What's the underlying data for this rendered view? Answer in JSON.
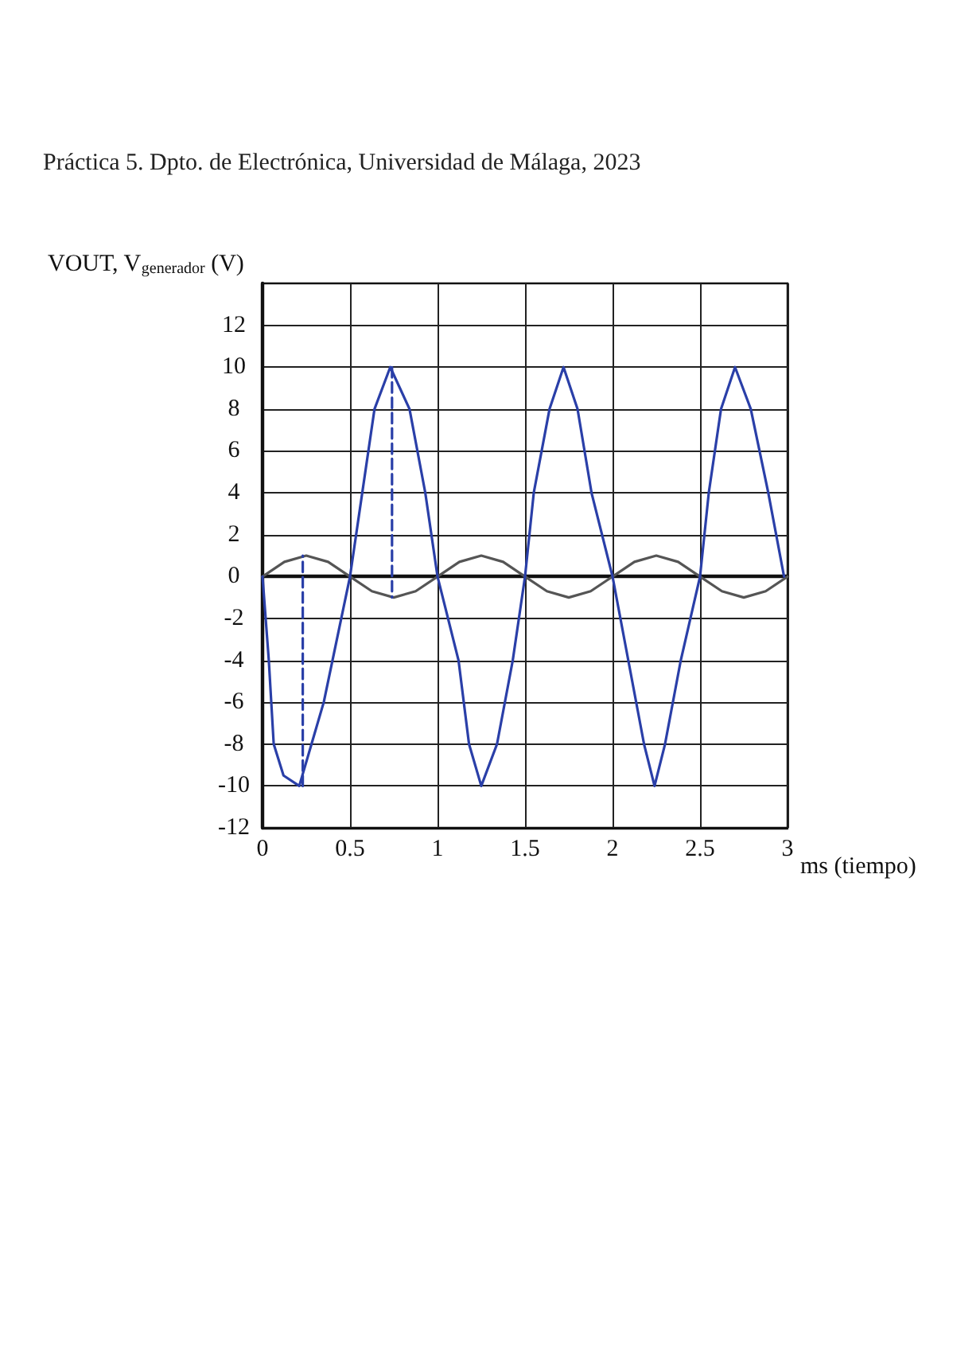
{
  "chart_data": {
    "type": "line",
    "title": "Práctica 5. Dpto. de Electrónica, Universidad de Málaga, 2023",
    "ylabel": "VOUT, V$_{generador}$ (V)",
    "xlabel": "ms (tiempo)",
    "xlim": [
      0,
      3
    ],
    "xticks": [
      0,
      0.5,
      1,
      1.5,
      2,
      2.5,
      3
    ],
    "ylim": [
      -12,
      14
    ],
    "yticks": [
      -12,
      -10,
      -8,
      -6,
      -4,
      -2,
      0,
      2,
      4,
      6,
      8,
      10,
      12
    ],
    "grid": true,
    "marker": "none",
    "line_style": "solid",
    "series": [
      {
        "color": "#555555",
        "x": [
          0,
          0.125,
          0.25,
          0.375,
          0.5,
          0.625,
          0.75,
          0.875,
          1,
          1.125,
          1.25,
          1.375,
          1.5,
          1.625,
          1.75,
          1.875,
          2,
          2.125,
          2.25,
          2.375,
          2.5,
          2.625,
          2.75,
          2.875,
          3
        ],
        "values": [
          0,
          0.7,
          1,
          0.7,
          0,
          -0.7,
          -1,
          -0.7,
          0,
          0.7,
          1,
          0.7,
          0,
          -0.7,
          -1,
          -0.7,
          0,
          0.7,
          1,
          0.7,
          0,
          -0.7,
          -1,
          -0.7,
          0
        ]
      },
      {
        "color": "#2a3fa8",
        "x": [
          0,
          0.036,
          0.064,
          0.12,
          0.21,
          0.28,
          0.35,
          0.45,
          0.5,
          0.57,
          0.64,
          0.73,
          0.84,
          0.93,
          1,
          1.12,
          1.18,
          1.25,
          1.34,
          1.43,
          1.5,
          1.55,
          1.64,
          1.72,
          1.8,
          1.88,
          2,
          2.09,
          2.18,
          2.24,
          2.3,
          2.39,
          2.5,
          2.55,
          2.62,
          2.7,
          2.79,
          2.89,
          2.98
        ],
        "values": [
          0,
          -4,
          -8,
          -9.5,
          -10,
          -8,
          -6,
          -2,
          0,
          4,
          8,
          10,
          8,
          4,
          0,
          -4,
          -8,
          -10,
          -8,
          -4,
          0,
          4,
          8,
          10,
          8,
          4,
          0,
          -4,
          -8,
          -10,
          -8,
          -4,
          0,
          4,
          8,
          10,
          8,
          4,
          0
        ]
      },
      {
        "color": "#2a3fa8",
        "line_style": "dashed",
        "x": [
          0.23,
          0.23
        ],
        "values": [
          -10,
          1
        ]
      },
      {
        "color": "#2a3fa8",
        "line_style": "dashed",
        "x": [
          0.74,
          0.74
        ],
        "values": [
          10,
          -1
        ]
      }
    ]
  }
}
